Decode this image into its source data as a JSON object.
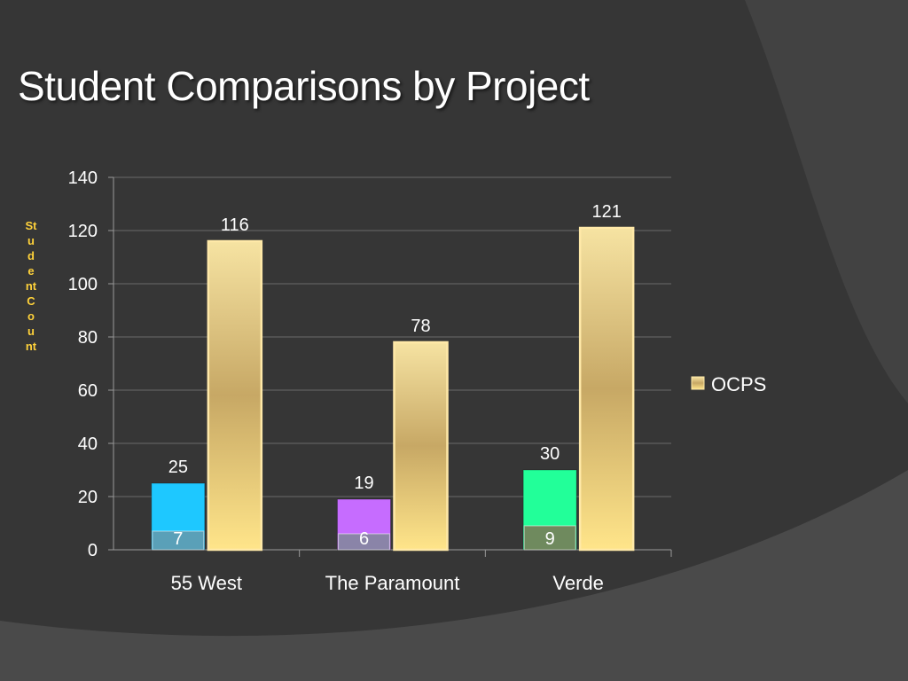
{
  "title": "Student Comparisons by Project",
  "colors": {
    "background": "#363636",
    "title": "#ffffff",
    "axis_label": "#ffd23a",
    "ocps": "#e8cf86",
    "grid": "#6a6a6a"
  },
  "chart_data": {
    "type": "bar",
    "title": "Student Comparisons by Project",
    "ylabel": "Student Count",
    "xlabel": "",
    "ylim": [
      0,
      140
    ],
    "yticks": [
      0,
      20,
      40,
      60,
      80,
      100,
      120,
      140
    ],
    "grid": true,
    "legend_position": "right",
    "categories": [
      "55 West",
      "The Paramount",
      "Verde"
    ],
    "series": [
      {
        "values": [
          25,
          19,
          30
        ],
        "colors": [
          "#1ec8ff",
          "#c66cff",
          "#22ff99"
        ]
      },
      {
        "values": [
          7,
          6,
          9
        ],
        "colors": [
          "#5aa0b8",
          "#8a84a8",
          "#6f8a5e"
        ]
      },
      {
        "name": "OCPS",
        "values": [
          116,
          78,
          121
        ],
        "color": "#e8cf86"
      }
    ]
  }
}
